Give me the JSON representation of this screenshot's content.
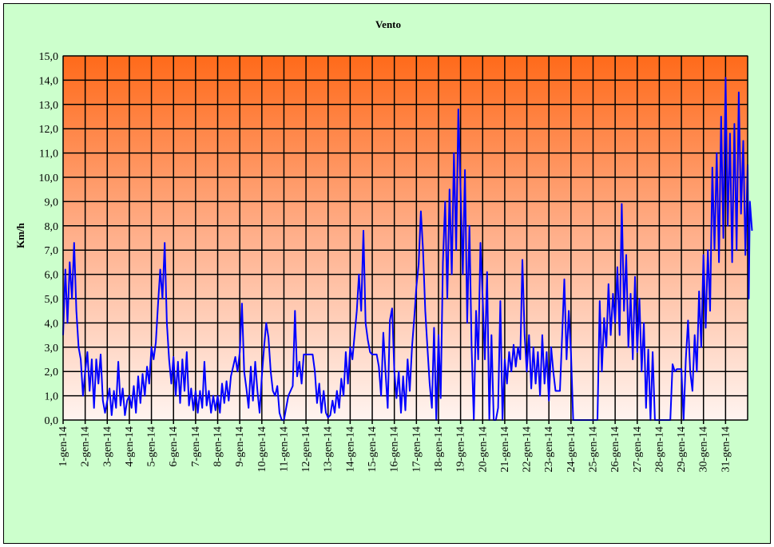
{
  "chart_data": {
    "type": "line",
    "title": "Vento",
    "xlabel": "",
    "ylabel": "Km/h",
    "ylim": [
      0,
      15
    ],
    "yticks": [
      "0,0",
      "1,0",
      "2,0",
      "3,0",
      "4,0",
      "5,0",
      "6,0",
      "7,0",
      "8,0",
      "9,0",
      "10,0",
      "11,0",
      "12,0",
      "13,0",
      "14,0",
      "15,0"
    ],
    "categories": [
      "1-gen-14",
      "2-gen-14",
      "3-gen-14",
      "4-gen-14",
      "5-gen-14",
      "6-gen-14",
      "7-gen-14",
      "8-gen-14",
      "9-gen-14",
      "10-gen-14",
      "11-gen-14",
      "12-gen-14",
      "13-gen-14",
      "14-gen-14",
      "15-gen-14",
      "16-gen-14",
      "17-gen-14",
      "18-gen-14",
      "19-gen-14",
      "20-gen-14",
      "21-gen-14",
      "22-gen-14",
      "23-gen-14",
      "24-gen-14",
      "25-gen-14",
      "26-gen-14",
      "27-gen-14",
      "28-gen-14",
      "29-gen-14",
      "30-gen-14",
      "31-gen-14"
    ],
    "grid": true,
    "legend": "none",
    "colors": {
      "line": "#0000ff",
      "plot_top": "#ff6a1a",
      "plot_bottom": "#fff4f0",
      "background": "#ccffcc"
    },
    "series": [
      {
        "values": [
          [
            0.0,
            3.5
          ],
          [
            0.1,
            6.2
          ],
          [
            0.2,
            4.0
          ],
          [
            0.3,
            6.5
          ],
          [
            0.4,
            5.0
          ],
          [
            0.5,
            7.3
          ],
          [
            0.6,
            4.5
          ],
          [
            0.7,
            3.0
          ],
          [
            0.8,
            2.5
          ],
          [
            0.9,
            1.0
          ],
          [
            1.0,
            2.0
          ],
          [
            1.1,
            2.8
          ],
          [
            1.2,
            1.2
          ],
          [
            1.3,
            2.5
          ],
          [
            1.4,
            0.5
          ],
          [
            1.5,
            2.5
          ],
          [
            1.6,
            1.5
          ],
          [
            1.7,
            2.7
          ],
          [
            1.8,
            0.8
          ],
          [
            1.9,
            0.3
          ],
          [
            2.0,
            0.8
          ],
          [
            2.1,
            1.3
          ],
          [
            2.2,
            0.2
          ],
          [
            2.3,
            1.2
          ],
          [
            2.4,
            0.5
          ],
          [
            2.5,
            2.4
          ],
          [
            2.6,
            0.6
          ],
          [
            2.7,
            1.3
          ],
          [
            2.8,
            0.2
          ],
          [
            2.9,
            0.8
          ],
          [
            3.0,
            1.0
          ],
          [
            3.1,
            0.5
          ],
          [
            3.2,
            1.4
          ],
          [
            3.3,
            0.3
          ],
          [
            3.4,
            1.8
          ],
          [
            3.5,
            0.7
          ],
          [
            3.6,
            1.9
          ],
          [
            3.7,
            1.0
          ],
          [
            3.8,
            2.2
          ],
          [
            3.9,
            1.5
          ],
          [
            4.0,
            3.0
          ],
          [
            4.1,
            2.5
          ],
          [
            4.2,
            3.2
          ],
          [
            4.3,
            4.8
          ],
          [
            4.4,
            6.2
          ],
          [
            4.5,
            5.0
          ],
          [
            4.6,
            7.3
          ],
          [
            4.7,
            4.0
          ],
          [
            4.8,
            2.5
          ],
          [
            4.9,
            1.5
          ],
          [
            5.0,
            2.6
          ],
          [
            5.1,
            1.0
          ],
          [
            5.2,
            2.4
          ],
          [
            5.3,
            0.7
          ],
          [
            5.4,
            2.5
          ],
          [
            5.5,
            1.2
          ],
          [
            5.6,
            2.8
          ],
          [
            5.7,
            0.6
          ],
          [
            5.8,
            1.3
          ],
          [
            5.9,
            0.4
          ],
          [
            6.0,
            1.2
          ],
          [
            6.1,
            0.3
          ],
          [
            6.2,
            1.2
          ],
          [
            6.3,
            0.5
          ],
          [
            6.4,
            2.4
          ],
          [
            6.5,
            0.6
          ],
          [
            6.6,
            1.2
          ],
          [
            6.7,
            0.3
          ],
          [
            6.8,
            1.0
          ],
          [
            6.9,
            0.4
          ],
          [
            7.0,
            1.0
          ],
          [
            7.1,
            0.3
          ],
          [
            7.2,
            1.5
          ],
          [
            7.3,
            0.7
          ],
          [
            7.4,
            1.6
          ],
          [
            7.5,
            0.8
          ],
          [
            7.6,
            1.8
          ],
          [
            7.7,
            2.2
          ],
          [
            7.8,
            2.6
          ],
          [
            7.9,
            2.0
          ],
          [
            8.0,
            2.8
          ],
          [
            8.1,
            4.8
          ],
          [
            8.2,
            2.0
          ],
          [
            8.3,
            1.3
          ],
          [
            8.4,
            0.5
          ],
          [
            8.5,
            2.2
          ],
          [
            8.6,
            0.8
          ],
          [
            8.7,
            2.4
          ],
          [
            8.8,
            1.2
          ],
          [
            8.9,
            0.3
          ],
          [
            9.0,
            1.8
          ],
          [
            9.1,
            3.0
          ],
          [
            9.2,
            4.0
          ],
          [
            9.3,
            3.4
          ],
          [
            9.4,
            2.0
          ],
          [
            9.5,
            1.2
          ],
          [
            9.6,
            1.0
          ],
          [
            9.7,
            1.4
          ],
          [
            9.8,
            0.3
          ],
          [
            9.9,
            0.0
          ],
          [
            10.0,
            0.0
          ],
          [
            10.2,
            1.0
          ],
          [
            10.4,
            1.4
          ],
          [
            10.5,
            4.5
          ],
          [
            10.6,
            1.8
          ],
          [
            10.7,
            2.4
          ],
          [
            10.8,
            1.5
          ],
          [
            10.9,
            2.7
          ],
          [
            11.0,
            2.7
          ],
          [
            11.3,
            2.7
          ],
          [
            11.4,
            2.0
          ],
          [
            11.5,
            0.7
          ],
          [
            11.6,
            1.5
          ],
          [
            11.7,
            0.3
          ],
          [
            11.8,
            1.2
          ],
          [
            11.9,
            0.3
          ],
          [
            12.0,
            0.1
          ],
          [
            12.1,
            0.2
          ],
          [
            12.2,
            0.8
          ],
          [
            12.3,
            0.3
          ],
          [
            12.4,
            1.2
          ],
          [
            12.5,
            0.5
          ],
          [
            12.6,
            1.7
          ],
          [
            12.7,
            1.0
          ],
          [
            12.8,
            2.8
          ],
          [
            12.9,
            1.5
          ],
          [
            13.0,
            3.0
          ],
          [
            13.1,
            2.5
          ],
          [
            13.2,
            3.5
          ],
          [
            13.3,
            4.5
          ],
          [
            13.4,
            6.0
          ],
          [
            13.5,
            4.5
          ],
          [
            13.6,
            7.8
          ],
          [
            13.7,
            4.0
          ],
          [
            13.8,
            3.3
          ],
          [
            13.9,
            2.8
          ],
          [
            14.0,
            2.7
          ],
          [
            14.2,
            2.7
          ],
          [
            14.3,
            2.2
          ],
          [
            14.4,
            1.0
          ],
          [
            14.5,
            3.6
          ],
          [
            14.6,
            2.0
          ],
          [
            14.7,
            0.5
          ],
          [
            14.8,
            4.1
          ],
          [
            14.9,
            4.6
          ],
          [
            15.0,
            2.0
          ],
          [
            15.1,
            0.9
          ],
          [
            15.2,
            2.0
          ],
          [
            15.3,
            0.3
          ],
          [
            15.4,
            1.8
          ],
          [
            15.5,
            0.4
          ],
          [
            15.6,
            2.5
          ],
          [
            15.7,
            1.2
          ],
          [
            15.8,
            3.0
          ],
          [
            15.9,
            4.2
          ],
          [
            16.0,
            5.5
          ],
          [
            16.1,
            6.4
          ],
          [
            16.2,
            8.6
          ],
          [
            16.3,
            7.0
          ],
          [
            16.4,
            4.5
          ],
          [
            16.5,
            3.0
          ],
          [
            16.6,
            1.5
          ],
          [
            16.7,
            0.5
          ],
          [
            16.8,
            3.8
          ],
          [
            16.9,
            0.0
          ],
          [
            17.0,
            3.5
          ],
          [
            17.1,
            0.9
          ],
          [
            17.2,
            6.5
          ],
          [
            17.3,
            9.0
          ],
          [
            17.4,
            5.0
          ],
          [
            17.5,
            9.5
          ],
          [
            17.6,
            6.0
          ],
          [
            17.7,
            11.0
          ],
          [
            17.8,
            7.0
          ],
          [
            17.9,
            12.8
          ],
          [
            18.0,
            9.5
          ],
          [
            18.1,
            6.0
          ],
          [
            18.2,
            10.3
          ],
          [
            18.3,
            4.0
          ],
          [
            18.4,
            8.0
          ],
          [
            18.5,
            3.0
          ],
          [
            18.6,
            0.0
          ],
          [
            18.7,
            4.5
          ],
          [
            18.8,
            2.5
          ],
          [
            18.9,
            7.3
          ],
          [
            19.0,
            5.0
          ],
          [
            19.1,
            2.5
          ],
          [
            19.2,
            6.1
          ],
          [
            19.3,
            0.0
          ],
          [
            19.4,
            3.5
          ],
          [
            19.5,
            0.0
          ],
          [
            19.6,
            0.0
          ],
          [
            19.7,
            0.5
          ],
          [
            19.8,
            4.9
          ],
          [
            19.9,
            0.0
          ],
          [
            20.0,
            2.5
          ],
          [
            20.1,
            1.5
          ],
          [
            20.2,
            2.8
          ],
          [
            20.3,
            2.0
          ],
          [
            20.4,
            3.1
          ],
          [
            20.5,
            2.2
          ],
          [
            20.6,
            3.0
          ],
          [
            20.7,
            2.5
          ],
          [
            20.8,
            6.6
          ],
          [
            20.9,
            3.5
          ],
          [
            21.0,
            2.0
          ],
          [
            21.1,
            3.5
          ],
          [
            21.2,
            1.3
          ],
          [
            21.3,
            3.0
          ],
          [
            21.4,
            1.5
          ],
          [
            21.5,
            2.8
          ],
          [
            21.6,
            1.0
          ],
          [
            21.7,
            3.5
          ],
          [
            21.8,
            1.5
          ],
          [
            21.9,
            2.8
          ],
          [
            22.0,
            0.8
          ],
          [
            22.1,
            3.0
          ],
          [
            22.2,
            2.0
          ],
          [
            22.3,
            1.2
          ],
          [
            22.5,
            1.2
          ],
          [
            22.6,
            3.5
          ],
          [
            22.7,
            5.8
          ],
          [
            22.8,
            2.5
          ],
          [
            22.9,
            4.5
          ],
          [
            23.0,
            2.8
          ],
          [
            23.1,
            0.0
          ],
          [
            23.2,
            0.0
          ],
          [
            23.5,
            0.0
          ],
          [
            23.9,
            0.0
          ],
          [
            24.0,
            0.0
          ],
          [
            24.2,
            0.0
          ],
          [
            24.3,
            4.9
          ],
          [
            24.4,
            2.0
          ],
          [
            24.5,
            4.2
          ],
          [
            24.6,
            3.0
          ],
          [
            24.7,
            5.6
          ],
          [
            24.8,
            3.5
          ],
          [
            24.9,
            5.2
          ],
          [
            25.0,
            4.0
          ],
          [
            25.1,
            6.3
          ],
          [
            25.2,
            3.5
          ],
          [
            25.3,
            8.9
          ],
          [
            25.4,
            4.5
          ],
          [
            25.5,
            6.8
          ],
          [
            25.6,
            3.0
          ],
          [
            25.7,
            5.2
          ],
          [
            25.8,
            2.5
          ],
          [
            25.9,
            5.9
          ],
          [
            26.0,
            2.8
          ],
          [
            26.1,
            5.0
          ],
          [
            26.2,
            2.0
          ],
          [
            26.3,
            4.0
          ],
          [
            26.4,
            0.5
          ],
          [
            26.5,
            2.9
          ],
          [
            26.6,
            0.0
          ],
          [
            26.7,
            2.8
          ],
          [
            26.8,
            0.0
          ],
          [
            27.0,
            0.0
          ],
          [
            27.3,
            0.0
          ],
          [
            27.5,
            0.0
          ],
          [
            27.6,
            2.3
          ],
          [
            27.7,
            2.0
          ],
          [
            27.8,
            2.1
          ],
          [
            28.0,
            2.1
          ],
          [
            28.1,
            0.0
          ],
          [
            28.2,
            2.5
          ],
          [
            28.3,
            4.1
          ],
          [
            28.4,
            2.0
          ],
          [
            28.5,
            1.2
          ],
          [
            28.6,
            3.5
          ],
          [
            28.7,
            2.0
          ],
          [
            28.8,
            5.3
          ],
          [
            28.9,
            3.0
          ],
          [
            29.0,
            6.8
          ],
          [
            29.1,
            3.8
          ],
          [
            29.2,
            7.0
          ],
          [
            29.3,
            4.5
          ],
          [
            29.4,
            10.4
          ],
          [
            29.5,
            7.0
          ],
          [
            29.6,
            11.0
          ],
          [
            29.7,
            6.5
          ],
          [
            29.8,
            12.5
          ],
          [
            29.9,
            7.5
          ],
          [
            30.0,
            14.1
          ],
          [
            30.1,
            8.0
          ],
          [
            30.2,
            11.8
          ],
          [
            30.3,
            6.5
          ],
          [
            30.4,
            12.2
          ],
          [
            30.5,
            7.0
          ],
          [
            30.6,
            13.5
          ],
          [
            30.7,
            8.5
          ],
          [
            30.8,
            11.5
          ],
          [
            30.9,
            6.8
          ],
          [
            31.0,
            10.5
          ],
          [
            31.05,
            5.0
          ],
          [
            31.1,
            9.0
          ],
          [
            31.2,
            7.8
          ]
        ]
      }
    ]
  }
}
